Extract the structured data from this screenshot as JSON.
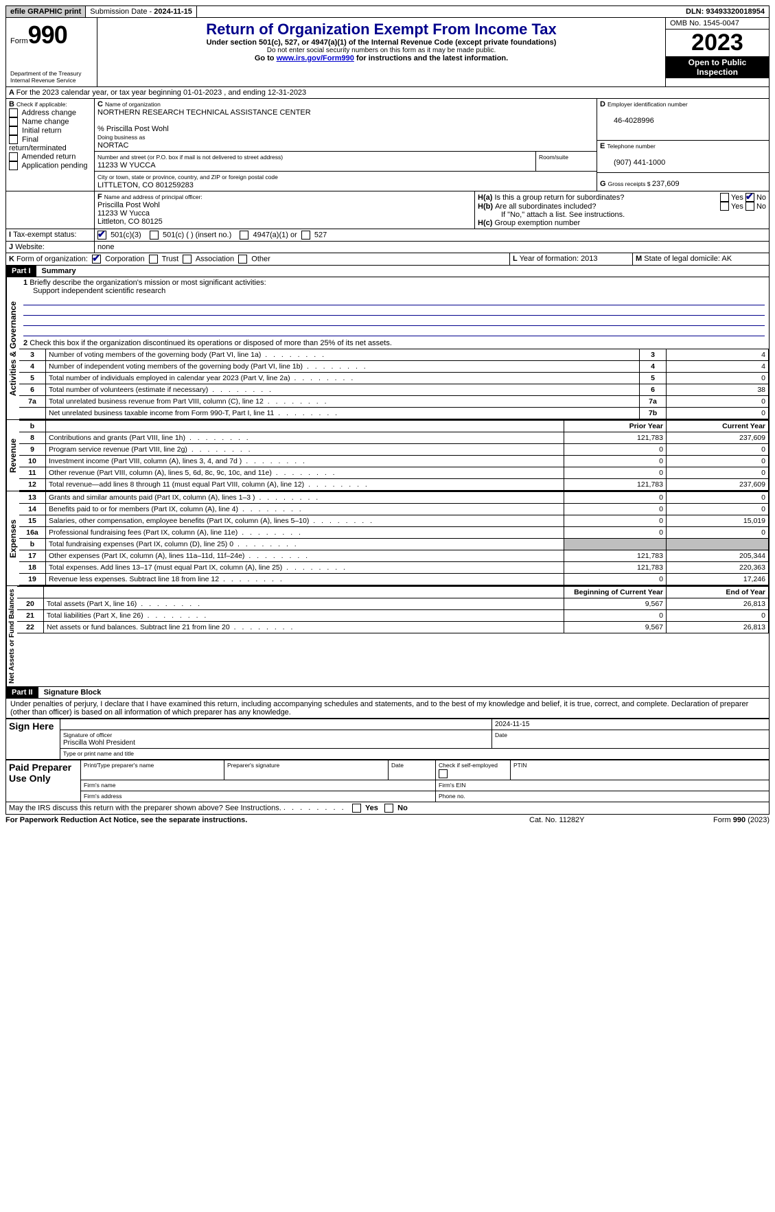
{
  "topbar": {
    "efile": "efile GRAPHIC print",
    "submission_label": "Submission Date - ",
    "submission_date": "2024-11-15",
    "dln_label": "DLN: ",
    "dln": "93493320018954"
  },
  "header": {
    "form_word": "Form",
    "form_number": "990",
    "dept1": "Department of the Treasury",
    "dept2": "Internal Revenue Service",
    "title": "Return of Organization Exempt From Income Tax",
    "subtitle": "Under section 501(c), 527, or 4947(a)(1) of the Internal Revenue Code (except private foundations)",
    "ssn_note": "Do not enter social security numbers on this form as it may be made public.",
    "goto_pre": "Go to ",
    "goto_link": "www.irs.gov/Form990",
    "goto_post": " for instructions and the latest information.",
    "omb_label": "OMB No. ",
    "omb": "1545-0047",
    "year": "2023",
    "inspection": "Open to Public Inspection"
  },
  "line_a": "For the 2023 calendar year, or tax year beginning 01-01-2023   , and ending 12-31-2023",
  "box_b": {
    "label": "Check if applicable:",
    "items": [
      "Address change",
      "Name change",
      "Initial return",
      "Final return/terminated",
      "Amended return",
      "Application pending"
    ]
  },
  "box_c": {
    "name_label": "Name of organization",
    "name": "NORTHERN RESEARCH TECHNICAL ASSISTANCE CENTER",
    "care_of": "% Priscilla Post Wohl",
    "dba_label": "Doing business as",
    "dba": "NORTAC",
    "street_label": "Number and street (or P.O. box if mail is not delivered to street address)",
    "street": "11233 W YUCCA",
    "room_label": "Room/suite",
    "city_label": "City or town, state or province, country, and ZIP or foreign postal code",
    "city": "LITTLETON, CO  801259283"
  },
  "box_d": {
    "label": "Employer identification number",
    "value": "46-4028996"
  },
  "box_e": {
    "label": "Telephone number",
    "value": "(907) 441-1000"
  },
  "box_g": {
    "label": "Gross receipts $ ",
    "value": "237,609"
  },
  "box_f": {
    "label": "Name and address of principal officer:",
    "line1": "Priscilla Post Wohl",
    "line2": "11233 W Yucca",
    "line3": "Littleton, CO  80125"
  },
  "box_h": {
    "ha": "Is this a group return for subordinates?",
    "hb": "Are all subordinates included?",
    "hb_note": "If \"No,\" attach a list. See instructions.",
    "hc": "Group exemption number",
    "yes": "Yes",
    "no": "No"
  },
  "row_i": {
    "label": "Tax-exempt status:",
    "opt1": "501(c)(3)",
    "opt2": "501(c) (  ) (insert no.)",
    "opt3": "4947(a)(1) or",
    "opt4": "527"
  },
  "row_j": {
    "label": "Website:",
    "value": "none"
  },
  "row_k": {
    "label": "Form of organization:",
    "opts": [
      "Corporation",
      "Trust",
      "Association",
      "Other"
    ]
  },
  "row_l": {
    "label": "Year of formation: ",
    "value": "2013"
  },
  "row_m": {
    "label": "State of legal domicile: ",
    "value": "AK"
  },
  "part1": {
    "hdr": "Part I",
    "title": "Summary",
    "line1_label": "Briefly describe the organization's mission or most significant activities:",
    "line1_text": "Support independent scientific research",
    "line2": "Check this box      if the organization discontinued its operations or disposed of more than 25% of its net assets.",
    "prior_year": "Prior Year",
    "current_year": "Current Year",
    "begin_year": "Beginning of Current Year",
    "end_year": "End of Year",
    "vlabels": {
      "gov": "Activities & Governance",
      "rev": "Revenue",
      "exp": "Expenses",
      "net": "Net Assets or Fund Balances"
    },
    "gov_rows": [
      {
        "n": "3",
        "t": "Number of voting members of the governing body (Part VI, line 1a)",
        "b": "3",
        "v": "4"
      },
      {
        "n": "4",
        "t": "Number of independent voting members of the governing body (Part VI, line 1b)",
        "b": "4",
        "v": "4"
      },
      {
        "n": "5",
        "t": "Total number of individuals employed in calendar year 2023 (Part V, line 2a)",
        "b": "5",
        "v": "0"
      },
      {
        "n": "6",
        "t": "Total number of volunteers (estimate if necessary)",
        "b": "6",
        "v": "38"
      },
      {
        "n": "7a",
        "t": "Total unrelated business revenue from Part VIII, column (C), line 12",
        "b": "7a",
        "v": "0"
      },
      {
        "n": "",
        "t": "Net unrelated business taxable income from Form 990-T, Part I, line 11",
        "b": "7b",
        "v": "0"
      }
    ],
    "rev_rows": [
      {
        "n": "8",
        "t": "Contributions and grants (Part VIII, line 1h)",
        "p": "121,783",
        "c": "237,609"
      },
      {
        "n": "9",
        "t": "Program service revenue (Part VIII, line 2g)",
        "p": "0",
        "c": "0"
      },
      {
        "n": "10",
        "t": "Investment income (Part VIII, column (A), lines 3, 4, and 7d )",
        "p": "0",
        "c": "0"
      },
      {
        "n": "11",
        "t": "Other revenue (Part VIII, column (A), lines 5, 6d, 8c, 9c, 10c, and 11e)",
        "p": "0",
        "c": "0"
      },
      {
        "n": "12",
        "t": "Total revenue—add lines 8 through 11 (must equal Part VIII, column (A), line 12)",
        "p": "121,783",
        "c": "237,609"
      }
    ],
    "exp_rows": [
      {
        "n": "13",
        "t": "Grants and similar amounts paid (Part IX, column (A), lines 1–3 )",
        "p": "0",
        "c": "0"
      },
      {
        "n": "14",
        "t": "Benefits paid to or for members (Part IX, column (A), line 4)",
        "p": "0",
        "c": "0"
      },
      {
        "n": "15",
        "t": "Salaries, other compensation, employee benefits (Part IX, column (A), lines 5–10)",
        "p": "0",
        "c": "15,019"
      },
      {
        "n": "16a",
        "t": "Professional fundraising fees (Part IX, column (A), line 11e)",
        "p": "0",
        "c": "0"
      },
      {
        "n": "b",
        "t": "Total fundraising expenses (Part IX, column (D), line 25) 0",
        "p": "GREY",
        "c": "GREY"
      },
      {
        "n": "17",
        "t": "Other expenses (Part IX, column (A), lines 11a–11d, 11f–24e)",
        "p": "121,783",
        "c": "205,344"
      },
      {
        "n": "18",
        "t": "Total expenses. Add lines 13–17 (must equal Part IX, column (A), line 25)",
        "p": "121,783",
        "c": "220,363"
      },
      {
        "n": "19",
        "t": "Revenue less expenses. Subtract line 18 from line 12",
        "p": "0",
        "c": "17,246"
      }
    ],
    "net_rows": [
      {
        "n": "20",
        "t": "Total assets (Part X, line 16)",
        "p": "9,567",
        "c": "26,813"
      },
      {
        "n": "21",
        "t": "Total liabilities (Part X, line 26)",
        "p": "0",
        "c": "0"
      },
      {
        "n": "22",
        "t": "Net assets or fund balances. Subtract line 21 from line 20",
        "p": "9,567",
        "c": "26,813"
      }
    ]
  },
  "part2": {
    "hdr": "Part II",
    "title": "Signature Block",
    "declaration": "Under penalties of perjury, I declare that I have examined this return, including accompanying schedules and statements, and to the best of my knowledge and belief, it is true, correct, and complete. Declaration of preparer (other than officer) is based on all information of which preparer has any knowledge.",
    "sign_here": "Sign Here",
    "sig_officer": "Signature of officer",
    "sig_name": "Priscilla Wohl  President",
    "sig_type": "Type or print name and title",
    "date_label": "Date",
    "sig_date": "2024-11-15",
    "paid": "Paid Preparer Use Only",
    "prep_name": "Print/Type preparer's name",
    "prep_sig": "Preparer's signature",
    "prep_date": "Date",
    "prep_self": "Check        if self-employed",
    "ptin": "PTIN",
    "firm_name": "Firm's name",
    "firm_ein": "Firm's EIN",
    "firm_addr": "Firm's address",
    "phone": "Phone no.",
    "discuss": "May the IRS discuss this return with the preparer shown above? See Instructions.",
    "yes": "Yes",
    "no": "No"
  },
  "footer": {
    "left": "For Paperwork Reduction Act Notice, see the separate instructions.",
    "mid": "Cat. No. 11282Y",
    "right": "Form 990 (2023)"
  }
}
